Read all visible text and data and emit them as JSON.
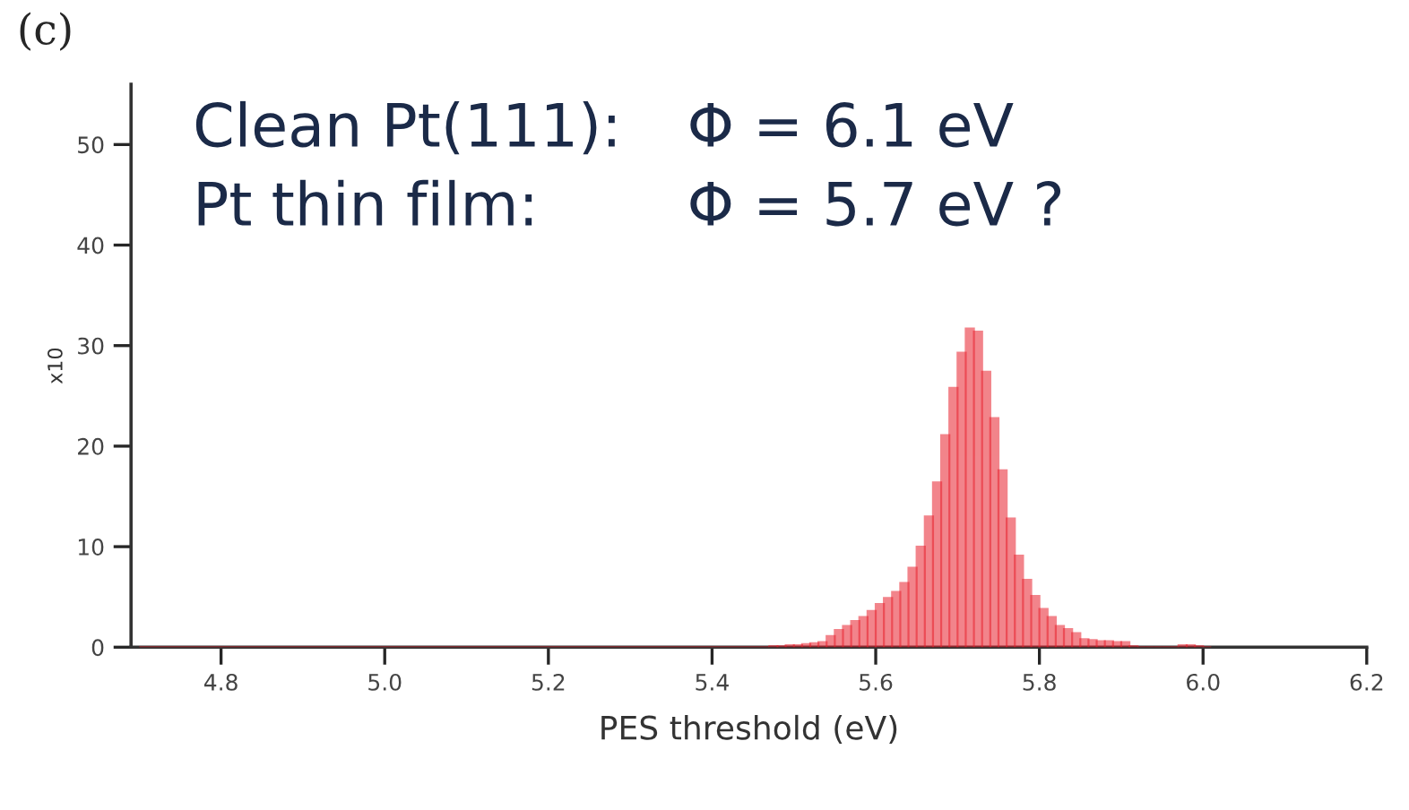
{
  "chart_data": {
    "type": "histogram",
    "title": "(c)",
    "xlabel": "PES threshold (eV)",
    "ylabel": "x10",
    "annotations": [
      "Clean Pt(111):",
      "Φ = 6.1 eV",
      "Pt thin film:",
      "Φ = 5.7 eV ?"
    ],
    "bins": [
      4.7,
      5.47,
      5.48,
      5.49,
      5.5,
      5.51,
      5.52,
      5.53,
      5.54,
      5.55,
      5.56,
      5.57,
      5.58,
      5.59,
      5.6,
      5.61,
      5.62,
      5.63,
      5.64,
      5.65,
      5.66,
      5.67,
      5.68,
      5.69,
      5.7,
      5.71,
      5.72,
      5.73,
      5.74,
      5.75,
      5.76,
      5.77,
      5.78,
      5.79,
      5.8,
      5.81,
      5.82,
      5.83,
      5.84,
      5.85,
      5.86,
      5.87,
      5.88,
      5.89,
      5.9,
      5.91,
      5.92,
      5.93,
      5.94,
      5.95,
      5.96,
      5.97,
      5.98,
      5.99,
      6.0,
      6.01
    ],
    "values": [
      0,
      0.1,
      0.1,
      0.2,
      0.2,
      0.3,
      0.4,
      0.5,
      1.1,
      1.7,
      2.1,
      2.6,
      3.0,
      3.6,
      4.3,
      4.9,
      5.5,
      6.4,
      7.9,
      10.0,
      13.0,
      16.4,
      21.1,
      25.8,
      29.3,
      31.7,
      31.4,
      27.4,
      22.8,
      17.6,
      12.8,
      9.1,
      6.7,
      5.1,
      3.8,
      3.0,
      2.1,
      1.8,
      1.4,
      0.8,
      0.7,
      0.6,
      0.6,
      0.5,
      0.5,
      0.1,
      0,
      0,
      0,
      0,
      0,
      0.2,
      0.2,
      0.1,
      0
    ],
    "color": "#e8202c",
    "xlim": [
      4.69,
      6.2
    ],
    "xticks": [
      {
        "value": 4.8,
        "label": "4.8"
      },
      {
        "value": 5.0,
        "label": "5.0"
      },
      {
        "value": 5.2,
        "label": "5.2"
      },
      {
        "value": 5.4,
        "label": "5.4"
      },
      {
        "value": 5.6,
        "label": "5.6"
      },
      {
        "value": 5.8,
        "label": "5.8"
      },
      {
        "value": 6.0,
        "label": "6.0"
      },
      {
        "value": 6.2,
        "label": "6.2"
      }
    ],
    "ylim": [
      0,
      56
    ],
    "yticks": [
      0,
      10,
      20,
      30,
      40,
      50
    ],
    "grid": false
  }
}
